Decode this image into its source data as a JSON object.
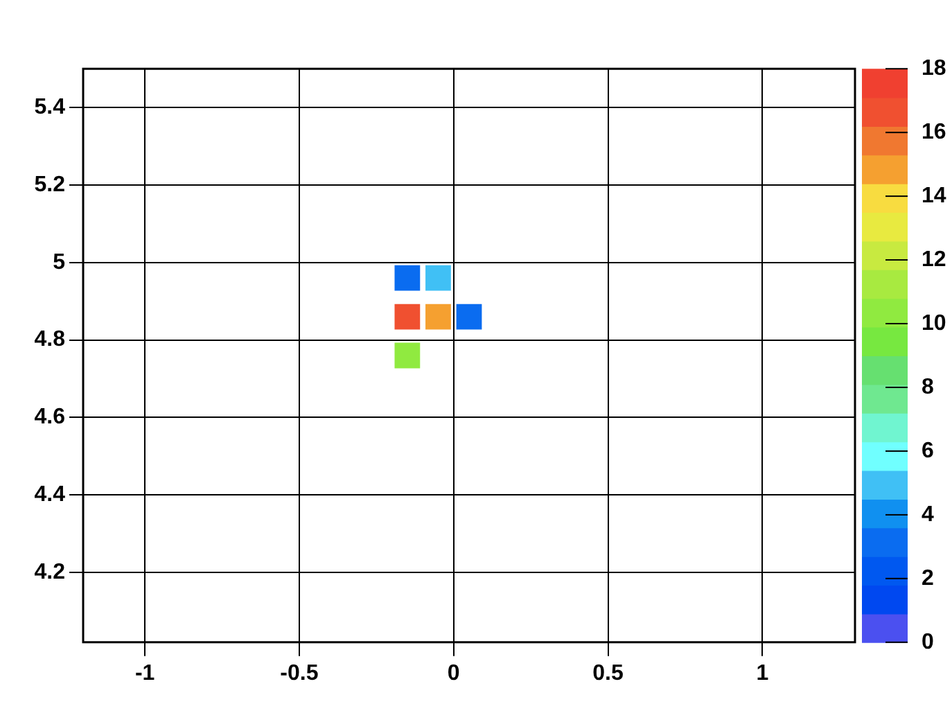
{
  "chart_data": {
    "type": "scatter",
    "marker": "square",
    "x": [
      -0.15,
      -0.05,
      -0.15,
      -0.05,
      0.05,
      -0.15
    ],
    "values": [
      4.96,
      4.96,
      4.86,
      4.86,
      4.86,
      4.76
    ],
    "cvalues": [
      3,
      5,
      17,
      15,
      3,
      10
    ],
    "xlim": [
      -1.2,
      1.3
    ],
    "xticks": [
      -1,
      -0.5,
      0,
      0.5,
      1
    ],
    "ylim": [
      4.02,
      5.5
    ],
    "yticks": [
      4.2,
      4.4,
      4.6,
      4.8,
      5,
      5.2,
      5.4
    ],
    "clim": [
      0,
      18
    ],
    "cticks": [
      0,
      2,
      4,
      6,
      8,
      10,
      12,
      14,
      16,
      18
    ],
    "grid": true
  }
}
